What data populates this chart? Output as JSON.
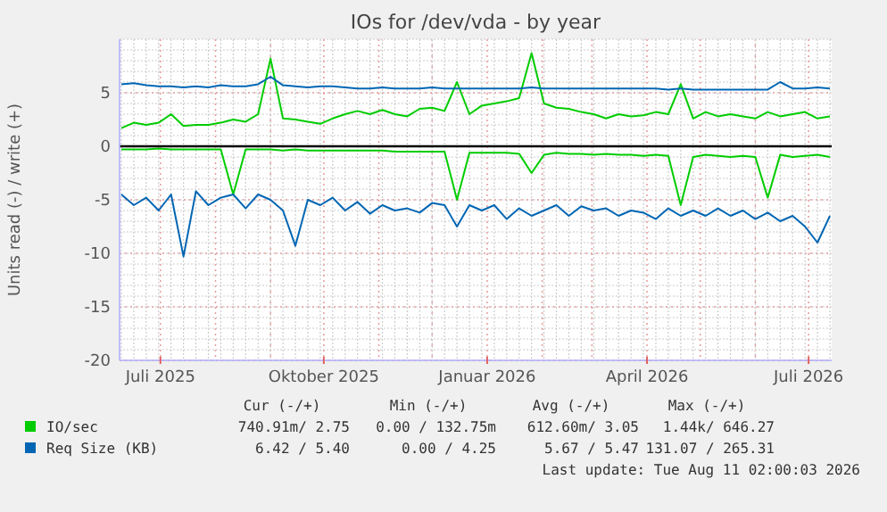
{
  "chart_data": {
    "type": "line",
    "title": "IOs for /dev/vda - by year",
    "ylabel": "Units read (-) / write (+)",
    "x": [
      "2025-06-09",
      "2025-06-16",
      "2025-06-23",
      "2025-06-30",
      "2025-07-07",
      "2025-07-14",
      "2025-07-21",
      "2025-07-28",
      "2025-08-04",
      "2025-08-11",
      "2025-08-18",
      "2025-08-25",
      "2025-09-01",
      "2025-09-08",
      "2025-09-15",
      "2025-09-22",
      "2025-09-29",
      "2025-10-06",
      "2025-10-13",
      "2025-10-20",
      "2025-10-27",
      "2025-11-03",
      "2025-11-10",
      "2025-11-17",
      "2025-11-24",
      "2025-12-01",
      "2025-12-08",
      "2025-12-15",
      "2025-12-22",
      "2025-12-29",
      "2026-01-05",
      "2026-01-12",
      "2026-01-19",
      "2026-01-26",
      "2026-02-02",
      "2026-02-09",
      "2026-02-16",
      "2026-02-23",
      "2026-03-02",
      "2026-03-09",
      "2026-03-16",
      "2026-03-23",
      "2026-03-30",
      "2026-04-06",
      "2026-04-13",
      "2026-04-20",
      "2026-04-27",
      "2026-05-04",
      "2026-05-11",
      "2026-05-18",
      "2026-05-25",
      "2026-06-01",
      "2026-06-08",
      "2026-06-15",
      "2026-06-22",
      "2026-06-29",
      "2026-07-06",
      "2026-07-13"
    ],
    "series": [
      {
        "name": "IO/sec",
        "color": "#00cc00",
        "values": [
          1.7,
          2.2,
          2.0,
          2.2,
          3.0,
          1.9,
          2.0,
          2.0,
          2.2,
          2.5,
          2.3,
          3.0,
          8.2,
          2.6,
          2.5,
          2.3,
          2.1,
          2.6,
          3.0,
          3.3,
          3.0,
          3.4,
          3.0,
          2.8,
          3.5,
          3.6,
          3.3,
          6.0,
          3.0,
          3.8,
          4.0,
          4.2,
          4.5,
          8.7,
          4.0,
          3.6,
          3.5,
          3.2,
          3.0,
          2.6,
          3.0,
          2.8,
          2.9,
          3.2,
          3.0,
          5.8,
          2.6,
          3.2,
          2.8,
          3.0,
          2.8,
          2.6,
          3.2,
          2.8,
          3.0,
          3.2,
          2.6,
          2.8
        ]
      },
      {
        "name": "Req Size (KB)",
        "color": "#0066b3",
        "values": [
          5.8,
          5.9,
          5.7,
          5.6,
          5.6,
          5.5,
          5.6,
          5.5,
          5.7,
          5.6,
          5.6,
          5.8,
          6.5,
          5.7,
          5.6,
          5.5,
          5.6,
          5.6,
          5.5,
          5.4,
          5.4,
          5.5,
          5.4,
          5.4,
          5.4,
          5.5,
          5.4,
          5.4,
          5.4,
          5.4,
          5.4,
          5.4,
          5.4,
          5.5,
          5.4,
          5.4,
          5.4,
          5.4,
          5.4,
          5.4,
          5.4,
          5.4,
          5.4,
          5.4,
          5.3,
          5.4,
          5.3,
          5.3,
          5.3,
          5.3,
          5.3,
          5.3,
          5.3,
          6.0,
          5.4,
          5.4,
          5.5,
          5.4
        ]
      },
      {
        "color": "#00cc00",
        "values": [
          -0.3,
          -0.3,
          -0.3,
          -0.2,
          -0.3,
          -0.3,
          -0.3,
          -0.3,
          -0.3,
          -4.5,
          -0.3,
          -0.3,
          -0.3,
          -0.4,
          -0.3,
          -0.4,
          -0.4,
          -0.4,
          -0.4,
          -0.4,
          -0.4,
          -0.4,
          -0.5,
          -0.5,
          -0.5,
          -0.5,
          -0.5,
          -5.0,
          -0.6,
          -0.6,
          -0.6,
          -0.6,
          -0.7,
          -2.5,
          -0.8,
          -0.6,
          -0.7,
          -0.7,
          -0.8,
          -0.7,
          -0.8,
          -0.8,
          -0.9,
          -0.8,
          -0.9,
          -5.5,
          -1.0,
          -0.8,
          -0.9,
          -1.0,
          -0.9,
          -1.0,
          -4.8,
          -0.8,
          -1.0,
          -0.9,
          -0.8,
          -1.0
        ]
      },
      {
        "color": "#0066b3",
        "values": [
          -4.5,
          -5.5,
          -4.8,
          -6.0,
          -4.5,
          -10.3,
          -4.2,
          -5.5,
          -4.8,
          -4.5,
          -5.8,
          -4.5,
          -5.0,
          -6.0,
          -9.3,
          -5.0,
          -5.5,
          -4.8,
          -6.0,
          -5.2,
          -6.3,
          -5.5,
          -6.0,
          -5.8,
          -6.2,
          -5.3,
          -5.5,
          -7.5,
          -5.5,
          -6.0,
          -5.5,
          -6.8,
          -5.8,
          -6.5,
          -6.0,
          -5.5,
          -6.5,
          -5.6,
          -6.0,
          -5.8,
          -6.5,
          -6.0,
          -6.2,
          -6.8,
          -5.8,
          -6.5,
          -6.0,
          -6.5,
          -5.8,
          -6.5,
          -6.0,
          -6.8,
          -6.2,
          -7.0,
          -6.5,
          -7.5,
          -9.0,
          -6.5
        ]
      }
    ],
    "xlim": [
      "2025-06-08",
      "2026-07-14"
    ],
    "xticks": [
      {
        "value": "2025-07-01",
        "label": "Juli 2025"
      },
      {
        "value": "2025-10-01",
        "label": "Oktober 2025"
      },
      {
        "value": "2026-01-01",
        "label": "Januar 2026"
      },
      {
        "value": "2026-04-01",
        "label": "April 2026"
      },
      {
        "value": "2026-07-01",
        "label": "Juli 2026"
      }
    ],
    "ylim": [
      -20,
      10
    ],
    "yticks": [
      -20,
      -15,
      -10,
      -5,
      0,
      5
    ],
    "ref_lines": [
      {
        "axis": "y",
        "value": 0,
        "color": "#000000"
      }
    ],
    "grid": true,
    "legend": "bottom",
    "annotations": [
      "Cur (-/+)",
      "Min (-/+)",
      "Avg (-/+)",
      "Max (-/+)",
      "740.91m/ 2.75",
      "0.00 / 132.75m",
      "612.60m/ 3.05",
      "1.44k/ 646.27",
      "6.42 / 5.40",
      "0.00 / 4.25",
      "5.67 / 5.47",
      "131.07 / 265.31",
      "Last update: Tue Aug 11 02:00:03 2026"
    ]
  }
}
